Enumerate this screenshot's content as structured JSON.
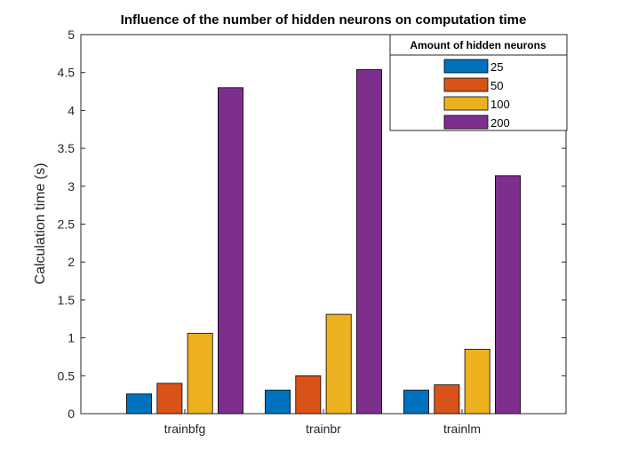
{
  "chart_data": {
    "type": "bar",
    "title": "Influence of the number of hidden neurons on computation time",
    "xlabel": "",
    "ylabel": "Calculation time (s)",
    "categories": [
      "trainbfg",
      "trainbr",
      "trainlm"
    ],
    "ylim": [
      0,
      5
    ],
    "yticks": [
      "0",
      "0.5",
      "1",
      "1.5",
      "2",
      "2.5",
      "3",
      "3.5",
      "4",
      "4.5",
      "5"
    ],
    "grid": false,
    "legend": {
      "title": "Amount of hidden neurons",
      "placement": "top-right"
    },
    "series": [
      {
        "name": "25",
        "color": "#0072BD",
        "values": [
          0.26,
          0.31,
          0.31
        ]
      },
      {
        "name": "50",
        "color": "#D95319",
        "values": [
          0.4,
          0.5,
          0.38
        ]
      },
      {
        "name": "100",
        "color": "#EDB120",
        "values": [
          1.06,
          1.31,
          0.85
        ]
      },
      {
        "name": "200",
        "color": "#7E2F8E",
        "values": [
          4.3,
          4.54,
          3.14
        ]
      }
    ]
  }
}
